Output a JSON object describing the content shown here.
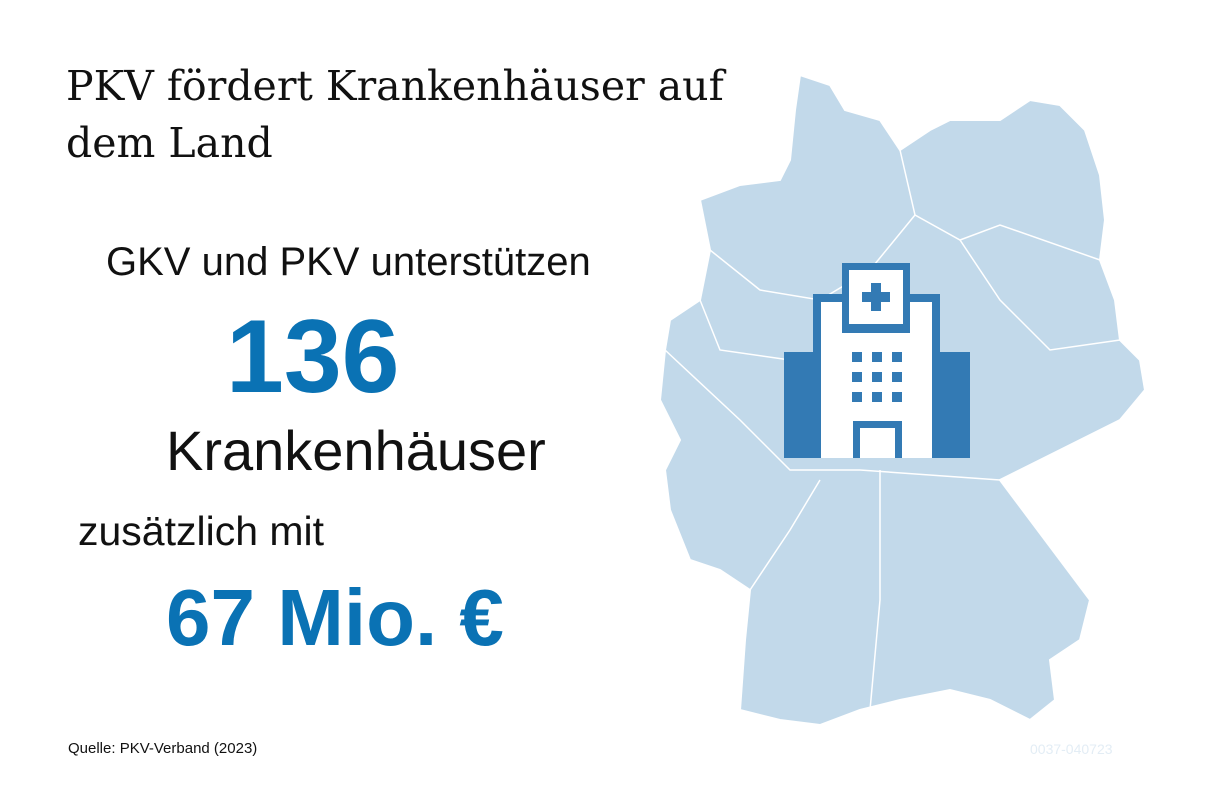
{
  "title": "PKV fördert Krankenhäuser auf dem Land",
  "intro": "GKV und PKV unterstützen",
  "count": "136",
  "count_label": "Krankenhäuser",
  "amount_intro": "zusätzlich mit",
  "amount": "67 Mio. €",
  "source": "Quelle: PKV-Verband (2023)",
  "code": "0037-040723",
  "icons": {
    "map": "germany-map",
    "building": "hospital-icon"
  },
  "colors": {
    "accent": "#0a72b4",
    "map": "#c2d9ea",
    "icon": "#337ab4"
  }
}
